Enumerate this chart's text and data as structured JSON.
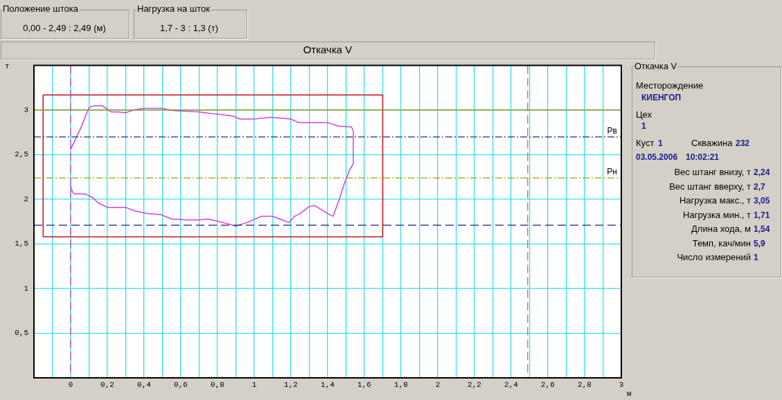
{
  "chart_data": {
    "type": "line",
    "title": "Откачка V",
    "xlabel": "м",
    "ylabel": "т",
    "xlim": [
      -0.2,
      3
    ],
    "ylim": [
      0,
      3.5
    ],
    "xticks": [
      {
        "value": -0.1,
        "label": null
      },
      {
        "value": 0,
        "label": "0"
      },
      {
        "value": 0.1,
        "label": null
      },
      {
        "value": 0.2,
        "label": "0,2"
      },
      {
        "value": 0.3,
        "label": null
      },
      {
        "value": 0.4,
        "label": "0,4"
      },
      {
        "value": 0.5,
        "label": null
      },
      {
        "value": 0.6,
        "label": "0,6"
      },
      {
        "value": 0.7,
        "label": null
      },
      {
        "value": 0.8,
        "label": "0,8"
      },
      {
        "value": 0.9,
        "label": null
      },
      {
        "value": 1,
        "label": "1"
      },
      {
        "value": 1.1,
        "label": null
      },
      {
        "value": 1.2,
        "label": "1,2"
      },
      {
        "value": 1.3,
        "label": null
      },
      {
        "value": 1.4,
        "label": "1,4"
      },
      {
        "value": 1.5,
        "label": null
      },
      {
        "value": 1.6,
        "label": "1,6"
      },
      {
        "value": 1.7,
        "label": null
      },
      {
        "value": 1.8,
        "label": "1,8"
      },
      {
        "value": 1.9,
        "label": null
      },
      {
        "value": 2,
        "label": "2"
      },
      {
        "value": 2.1,
        "label": null
      },
      {
        "value": 2.2,
        "label": "2,2"
      },
      {
        "value": 2.3,
        "label": null
      },
      {
        "value": 2.4,
        "label": "2,4"
      },
      {
        "value": 2.5,
        "label": null
      },
      {
        "value": 2.6,
        "label": "2,6"
      },
      {
        "value": 2.7,
        "label": null
      },
      {
        "value": 2.8,
        "label": "2,8"
      },
      {
        "value": 2.9,
        "label": null
      },
      {
        "value": 3,
        "label": "3"
      }
    ],
    "yticks": [
      {
        "value": 0.5,
        "label": "0,5"
      },
      {
        "value": 1,
        "label": "1"
      },
      {
        "value": 1.5,
        "label": "1,5"
      },
      {
        "value": 2,
        "label": "2"
      },
      {
        "value": 2.5,
        "label": "2,5"
      },
      {
        "value": 3,
        "label": "3"
      }
    ],
    "grid": true,
    "legend": false,
    "marker": "none",
    "series": [
      {
        "color": "#d040e0",
        "x": [
          0,
          0.055,
          0.1,
          0.13,
          0.17,
          0.2,
          0.22,
          0.26,
          0.3,
          0.34,
          0.4,
          0.5,
          0.54,
          0.59,
          0.7,
          0.77,
          0.82,
          0.89,
          0.92,
          1,
          1.09,
          1.2,
          1.24,
          1.29,
          1.4,
          1.46,
          1.53,
          1.54,
          1.54
        ],
        "values": [
          2.56,
          2.8,
          3.03,
          3.05,
          3.05,
          3.01,
          2.98,
          2.98,
          2.97,
          3,
          3.02,
          3.02,
          3,
          2.99,
          2.98,
          2.96,
          2.95,
          2.93,
          2.9,
          2.9,
          2.92,
          2.9,
          2.86,
          2.86,
          2.86,
          2.82,
          2.81,
          2.77,
          2.4
        ]
      },
      {
        "color": "#d040e0",
        "x": [
          0,
          0.01,
          0.02,
          0.08,
          0.12,
          0.15,
          0.2,
          0.3,
          0.35,
          0.42,
          0.49,
          0.55,
          0.63,
          0.7,
          0.75,
          0.79,
          0.85,
          0.9,
          0.96,
          1.04,
          1.1,
          1.14,
          1.19,
          1.22,
          1.25,
          1.3,
          1.33,
          1.37,
          1.4,
          1.43,
          1.47,
          1.49,
          1.52,
          1.54
        ],
        "values": [
          2.15,
          2.08,
          2.06,
          2.06,
          2.02,
          1.96,
          1.91,
          1.91,
          1.87,
          1.84,
          1.83,
          1.78,
          1.77,
          1.77,
          1.78,
          1.76,
          1.73,
          1.7,
          1.74,
          1.81,
          1.81,
          1.78,
          1.74,
          1.81,
          1.84,
          1.92,
          1.93,
          1.88,
          1.84,
          1.81,
          2.04,
          2.17,
          2.33,
          2.4
        ]
      },
      {
        "color": "#c01818",
        "x": [
          -0.15,
          -0.15,
          1.7,
          1.7
        ],
        "values": [
          1.58,
          3.17,
          3.17,
          1.58
        ]
      },
      {
        "color": "#c01818",
        "x": [
          -0.15,
          1.7
        ],
        "values": [
          1.58,
          1.58
        ]
      }
    ],
    "ref_lines": [
      {
        "axis": "y",
        "value": 3,
        "label": null,
        "color": "#a09000",
        "line_style": "solid"
      },
      {
        "axis": "y",
        "value": 2.7,
        "label": "Рв",
        "color": "#2a2a80",
        "line_style": "dotted"
      },
      {
        "axis": "y",
        "value": 2.24,
        "label": "Рн",
        "color": "#a09a10",
        "line_style": "dotted"
      },
      {
        "axis": "y",
        "value": 1.71,
        "label": null,
        "color": "#202070",
        "line_style": "dashed"
      },
      {
        "axis": "x",
        "value": 0,
        "label": null,
        "color": "#e040c0",
        "line_style": "dashed"
      },
      {
        "axis": "x",
        "value": 2.49,
        "label": null,
        "color": "#a08030",
        "line_style": "dashed"
      }
    ],
    "annotations": [
      "Положение штока",
      "0,00 - 2,49 : 2,49 (м)",
      "Нагрузка на шток",
      "1,7 - 3 : 1,3 (т)",
      "Откачка V",
      "Месторождение",
      "КИЕНГОП",
      "Цех",
      "1",
      "Куст",
      "1",
      "Скважина",
      "232",
      "03.05.2006",
      "10:02:21",
      "Вес штанг внизу, т",
      "2,24",
      "Вес штанг вверху, т",
      "2,7",
      "Нагрузка макс., т",
      "3,05",
      "Нагрузка мин., т",
      "1,71",
      "Длина хода, м",
      "1,54",
      "Темп, кач/мин",
      "5,9",
      "Число измерений",
      "1"
    ]
  }
}
